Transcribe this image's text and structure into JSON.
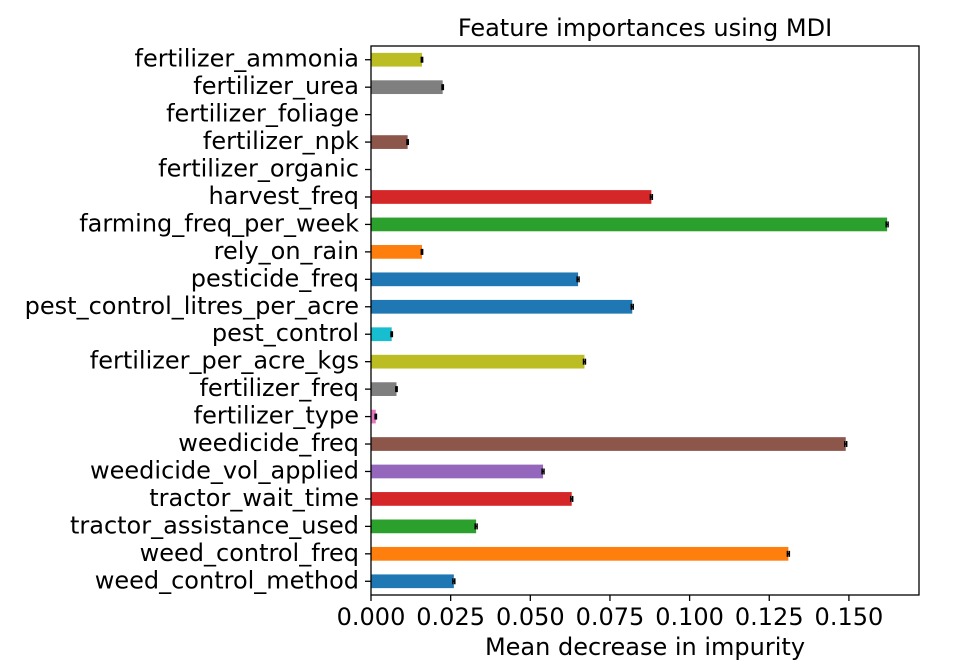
{
  "chart_data": {
    "type": "bar",
    "orientation": "horizontal",
    "title": "Feature importances using MDI",
    "xlabel": "Mean decrease in impurity",
    "ylabel": "",
    "xlim": [
      0,
      0.172
    ],
    "xticks": [
      0.0,
      0.025,
      0.05,
      0.075,
      0.1,
      0.125,
      0.15
    ],
    "xtick_labels": [
      "0.000",
      "0.025",
      "0.050",
      "0.075",
      "0.100",
      "0.125",
      "0.150"
    ],
    "grid": false,
    "error_bars": true,
    "categories": [
      "weed_control_method",
      "weed_control_freq",
      "tractor_assistance_used",
      "tractor_wait_time",
      "weedicide_vol_applied",
      "weedicide_freq",
      "fertilizer_type",
      "fertilizer_freq",
      "fertilizer_per_acre_kgs",
      "pest_control",
      "pest_control_litres_per_acre",
      "pesticide_freq",
      "rely_on_rain",
      "farming_freq_per_week",
      "harvest_freq",
      "fertilizer_organic",
      "fertilizer_npk",
      "fertilizer_foliage",
      "fertilizer_urea",
      "fertilizer_ammonia"
    ],
    "values": [
      0.026,
      0.131,
      0.033,
      0.063,
      0.054,
      0.149,
      0.0015,
      0.008,
      0.067,
      0.0065,
      0.082,
      0.065,
      0.016,
      0.162,
      0.088,
      0.0,
      0.0115,
      0.0,
      0.0225,
      0.016
    ],
    "errors": [
      0.0003,
      0.0003,
      0.0003,
      0.0003,
      0.0003,
      0.0003,
      0.0002,
      0.0002,
      0.0003,
      0.0002,
      0.0003,
      0.0003,
      0.0002,
      0.0003,
      0.0003,
      0.0,
      0.0002,
      0.0,
      0.0002,
      0.0002
    ],
    "colors": [
      "#1f77b4",
      "#ff7f0e",
      "#2ca02c",
      "#d62728",
      "#9467bd",
      "#8c564b",
      "#e377c2",
      "#7f7f7f",
      "#bcbd22",
      "#17becf",
      "#1f77b4",
      "#1f77b4",
      "#ff7f0e",
      "#2ca02c",
      "#d62728",
      "#9467bd",
      "#8c564b",
      "#e377c2",
      "#7f7f7f",
      "#bcbd22"
    ]
  }
}
